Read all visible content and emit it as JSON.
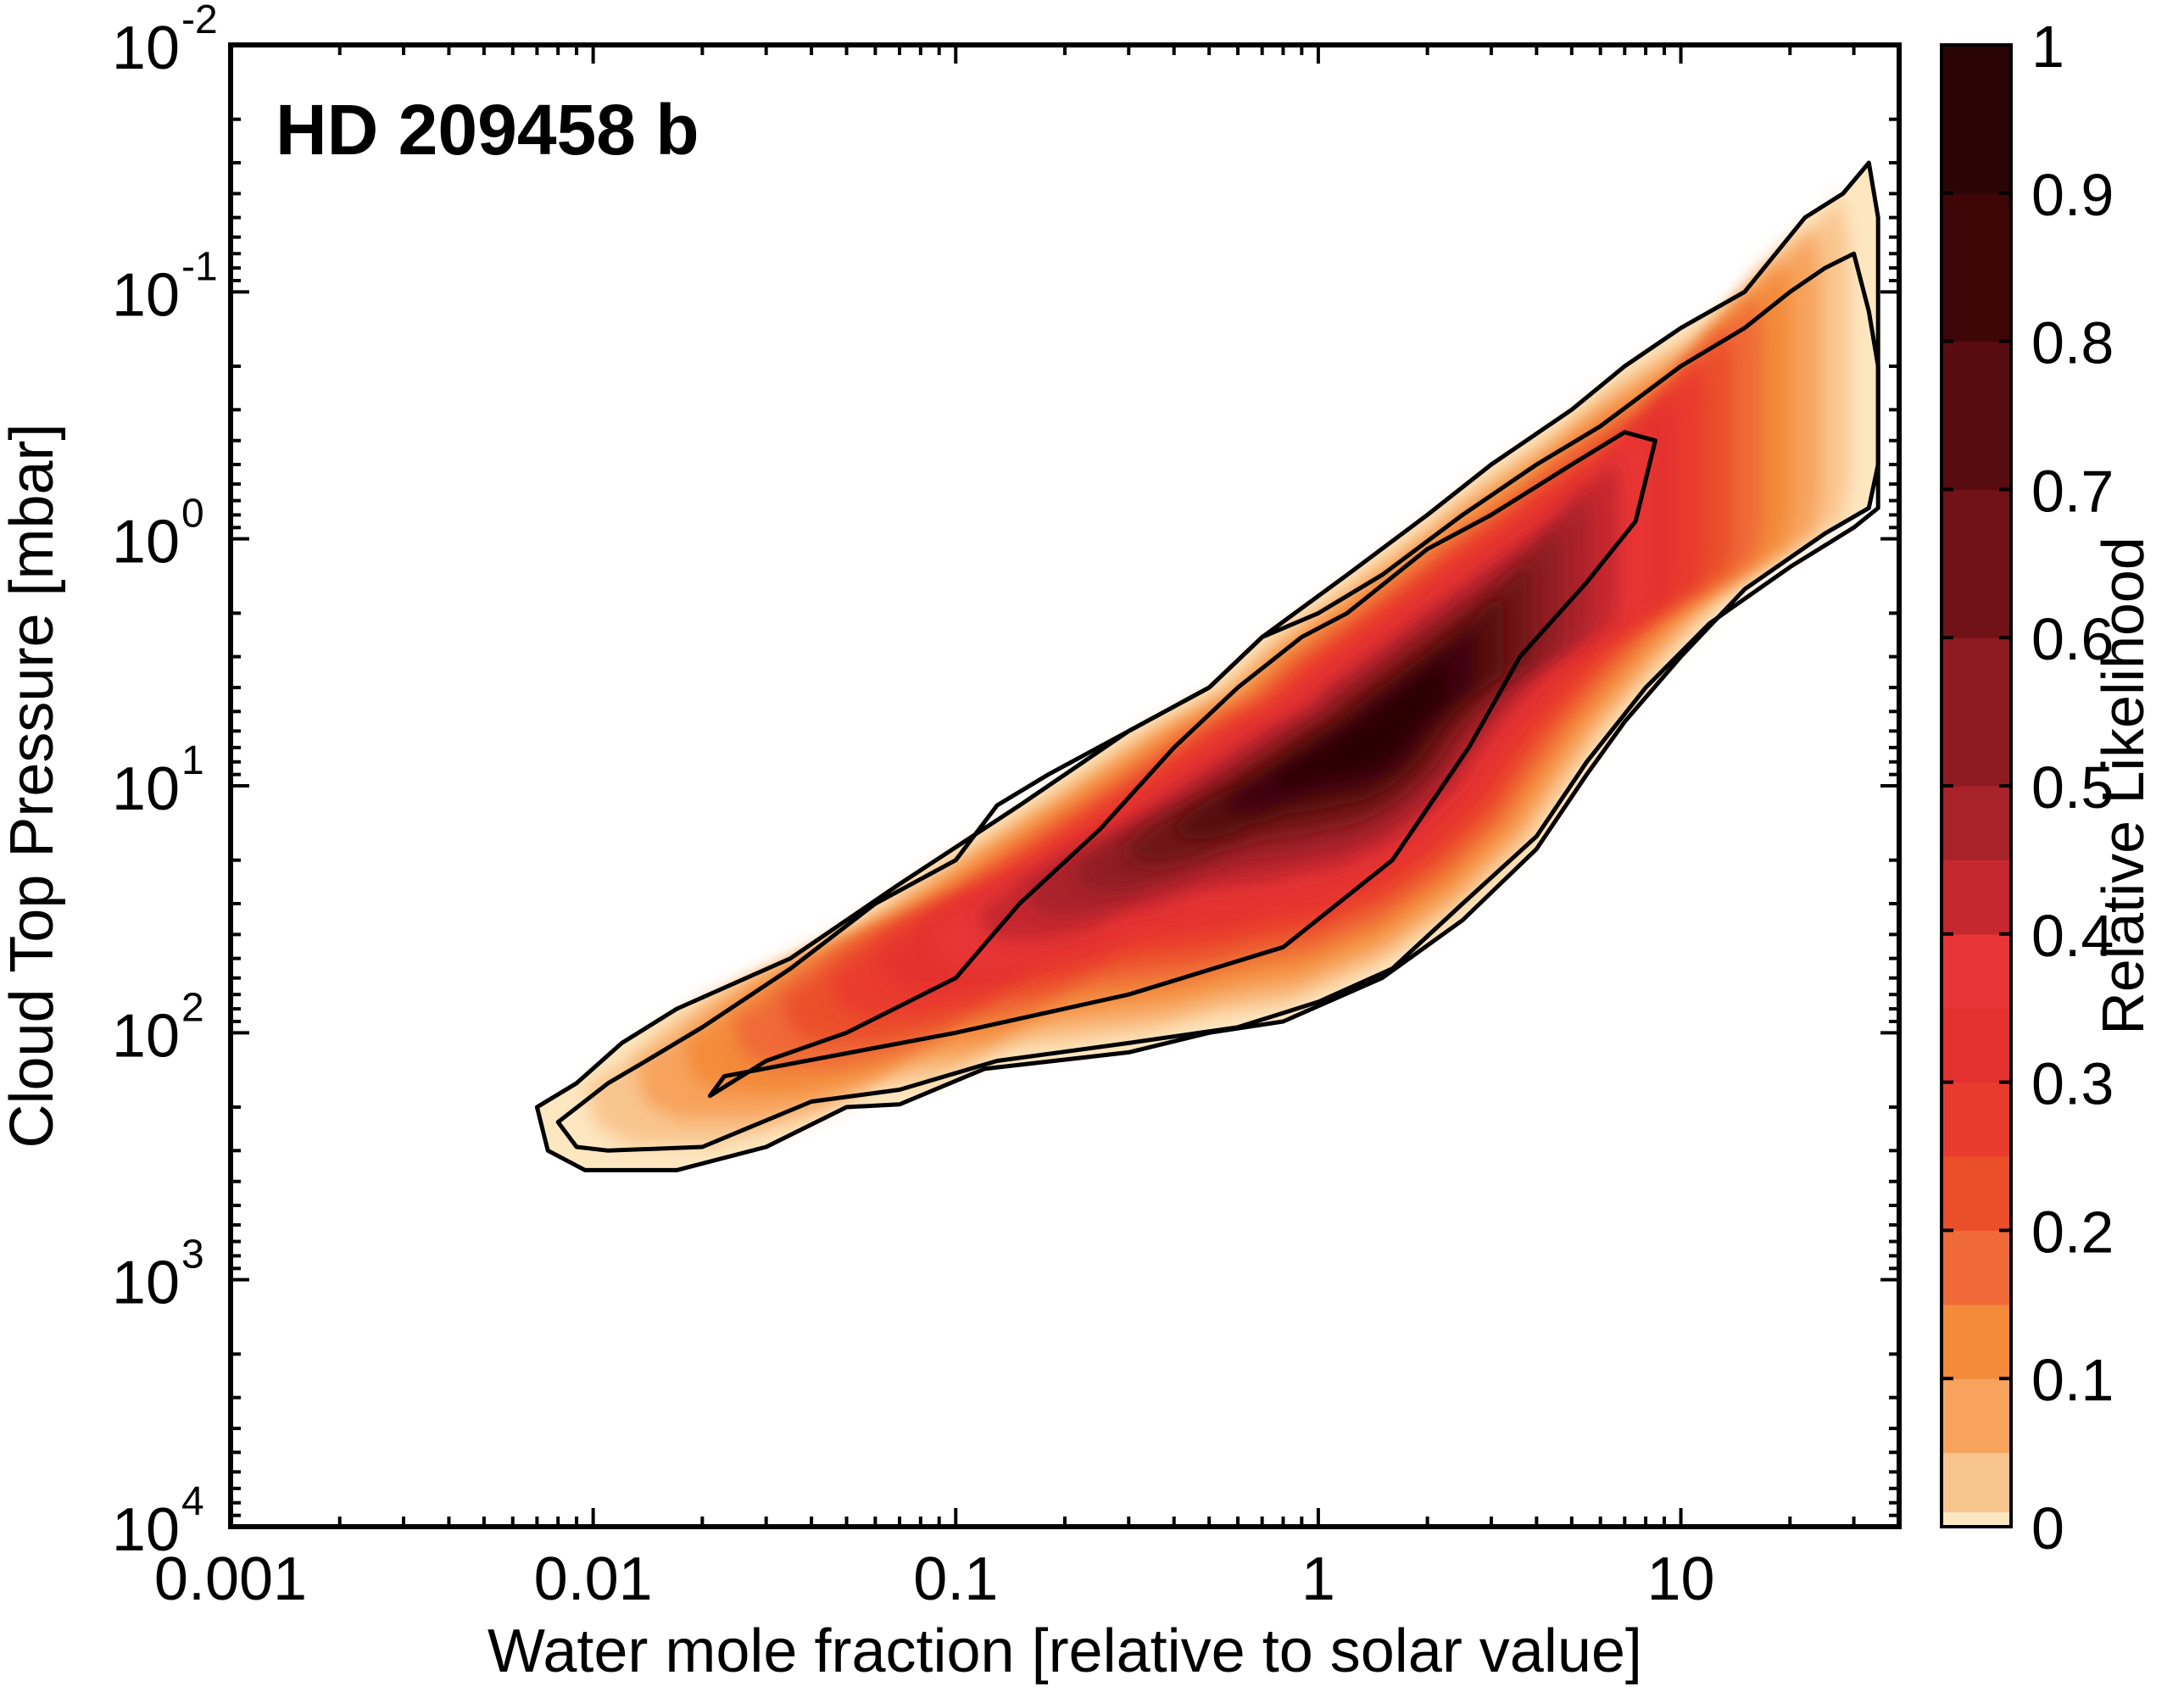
{
  "chart_data": {
    "type": "heatmap",
    "title": "HD 209458 b",
    "xlabel": "Water mole fraction [relative to solar value]",
    "ylabel": "Cloud Top Pressure [mbar]",
    "x_scale": "log",
    "y_scale": "log",
    "y_inverted": true,
    "xlim": [
      0.001,
      40
    ],
    "ylim": [
      0.01,
      10000
    ],
    "x_ticks": [
      {
        "value": 0.001,
        "label": "0.001"
      },
      {
        "value": 0.01,
        "label": "0.01"
      },
      {
        "value": 0.1,
        "label": "0.1"
      },
      {
        "value": 1,
        "label": "1"
      },
      {
        "value": 10,
        "label": "10"
      }
    ],
    "y_ticks": [
      {
        "value": 0.01,
        "base": "10",
        "exp": "-2"
      },
      {
        "value": 0.1,
        "base": "10",
        "exp": "-1"
      },
      {
        "value": 1,
        "base": "10",
        "exp": "0"
      },
      {
        "value": 10,
        "base": "10",
        "exp": "1"
      },
      {
        "value": 100,
        "base": "10",
        "exp": "2"
      },
      {
        "value": 1000,
        "base": "10",
        "exp": "3"
      },
      {
        "value": 10000,
        "base": "10",
        "exp": "4"
      }
    ],
    "colorbar": {
      "label": "Relative Likelihood",
      "range": [
        0,
        1
      ],
      "tick_labels": [
        "0",
        "0.1",
        "0.2",
        "0.3",
        "0.4",
        "0.5",
        "0.6",
        "0.7",
        "0.8",
        "0.9",
        "1"
      ],
      "levels": [
        0,
        0.01,
        0.05,
        0.1,
        0.15,
        0.2,
        0.25,
        0.3,
        0.35,
        0.4,
        0.45,
        0.5,
        0.6,
        0.7,
        0.8,
        0.9,
        1
      ],
      "colors": [
        "#fde7c1",
        "#f9c58e",
        "#f7a35d",
        "#f38b3a",
        "#ef6a38",
        "#eb4f29",
        "#e93b2d",
        "#e4302f",
        "#e83535",
        "#c5282f",
        "#a8222a",
        "#8e1b22",
        "#701218",
        "#580c10",
        "#3f0607",
        "#2b0506"
      ]
    },
    "peak": {
      "x": 1.5,
      "y": 6
    },
    "contours": [
      {
        "level": 0.01,
        "points": [
          [
            0.007,
            200
          ],
          [
            0.0075,
            300
          ],
          [
            0.0095,
            360
          ],
          [
            0.017,
            360
          ],
          [
            0.03,
            290
          ],
          [
            0.05,
            200
          ],
          [
            0.07,
            195
          ],
          [
            0.12,
            140
          ],
          [
            0.3,
            120
          ],
          [
            0.5,
            100
          ],
          [
            0.8,
            90
          ],
          [
            1.5,
            60
          ],
          [
            2.5,
            35
          ],
          [
            4,
            18
          ],
          [
            5.5,
            9
          ],
          [
            7,
            5.5
          ],
          [
            10,
            3
          ],
          [
            15,
            1.6
          ],
          [
            25,
            0.95
          ],
          [
            33,
            0.75
          ],
          [
            35,
            0.5
          ],
          [
            35,
            0.1
          ],
          [
            35,
            0.05
          ],
          [
            33,
            0.03
          ],
          [
            28,
            0.04
          ],
          [
            22,
            0.05
          ],
          [
            15,
            0.1
          ],
          [
            10,
            0.14
          ],
          [
            7,
            0.2
          ],
          [
            5,
            0.3
          ],
          [
            3,
            0.5
          ],
          [
            2,
            0.8
          ],
          [
            1.2,
            1.4
          ],
          [
            0.7,
            2.5
          ],
          [
            0.5,
            4
          ],
          [
            0.3,
            6
          ],
          [
            0.15,
            12
          ],
          [
            0.07,
            25
          ],
          [
            0.035,
            50
          ],
          [
            0.017,
            80
          ],
          [
            0.012,
            110
          ],
          [
            0.009,
            160
          ],
          [
            0.007,
            200
          ]
        ]
      },
      {
        "level": 0.05,
        "points": [
          [
            0.008,
            230
          ],
          [
            0.009,
            290
          ],
          [
            0.011,
            300
          ],
          [
            0.02,
            290
          ],
          [
            0.04,
            190
          ],
          [
            0.07,
            170
          ],
          [
            0.13,
            130
          ],
          [
            0.3,
            110
          ],
          [
            0.6,
            95
          ],
          [
            1,
            75
          ],
          [
            1.6,
            55
          ],
          [
            2.5,
            30
          ],
          [
            4,
            16
          ],
          [
            5.5,
            8
          ],
          [
            8,
            4
          ],
          [
            12,
            2.2
          ],
          [
            20,
            1.3
          ],
          [
            30,
            0.9
          ],
          [
            35,
            0.75
          ],
          [
            35,
            0.2
          ],
          [
            33,
            0.12
          ],
          [
            30,
            0.07
          ],
          [
            25,
            0.08
          ],
          [
            20,
            0.1
          ],
          [
            15,
            0.14
          ],
          [
            10,
            0.2
          ],
          [
            6,
            0.35
          ],
          [
            4,
            0.5
          ],
          [
            2.5,
            0.8
          ],
          [
            1.5,
            1.4
          ],
          [
            1,
            2
          ],
          [
            0.7,
            2.5
          ],
          [
            0.5,
            4
          ],
          [
            0.3,
            6
          ],
          [
            0.18,
            9
          ],
          [
            0.13,
            12
          ],
          [
            0.1,
            20
          ],
          [
            0.06,
            30
          ],
          [
            0.035,
            55
          ],
          [
            0.02,
            95
          ],
          [
            0.014,
            130
          ],
          [
            0.011,
            160
          ],
          [
            0.008,
            230
          ]
        ]
      },
      {
        "level": 0.3,
        "points": [
          [
            0.021,
            180
          ],
          [
            0.023,
            150
          ],
          [
            0.1,
            100
          ],
          [
            0.3,
            70
          ],
          [
            0.8,
            45
          ],
          [
            1.6,
            20
          ],
          [
            2.6,
            7
          ],
          [
            3.6,
            3
          ],
          [
            5.5,
            1.5
          ],
          [
            7.5,
            0.85
          ],
          [
            8.5,
            0.4
          ],
          [
            7,
            0.37
          ],
          [
            5,
            0.5
          ],
          [
            3,
            0.8
          ],
          [
            2,
            1.1
          ],
          [
            1.2,
            2
          ],
          [
            0.9,
            2.5
          ],
          [
            0.6,
            4
          ],
          [
            0.4,
            7
          ],
          [
            0.25,
            15
          ],
          [
            0.15,
            30
          ],
          [
            0.1,
            60
          ],
          [
            0.05,
            100
          ],
          [
            0.03,
            130
          ],
          [
            0.021,
            180
          ]
        ]
      }
    ]
  }
}
